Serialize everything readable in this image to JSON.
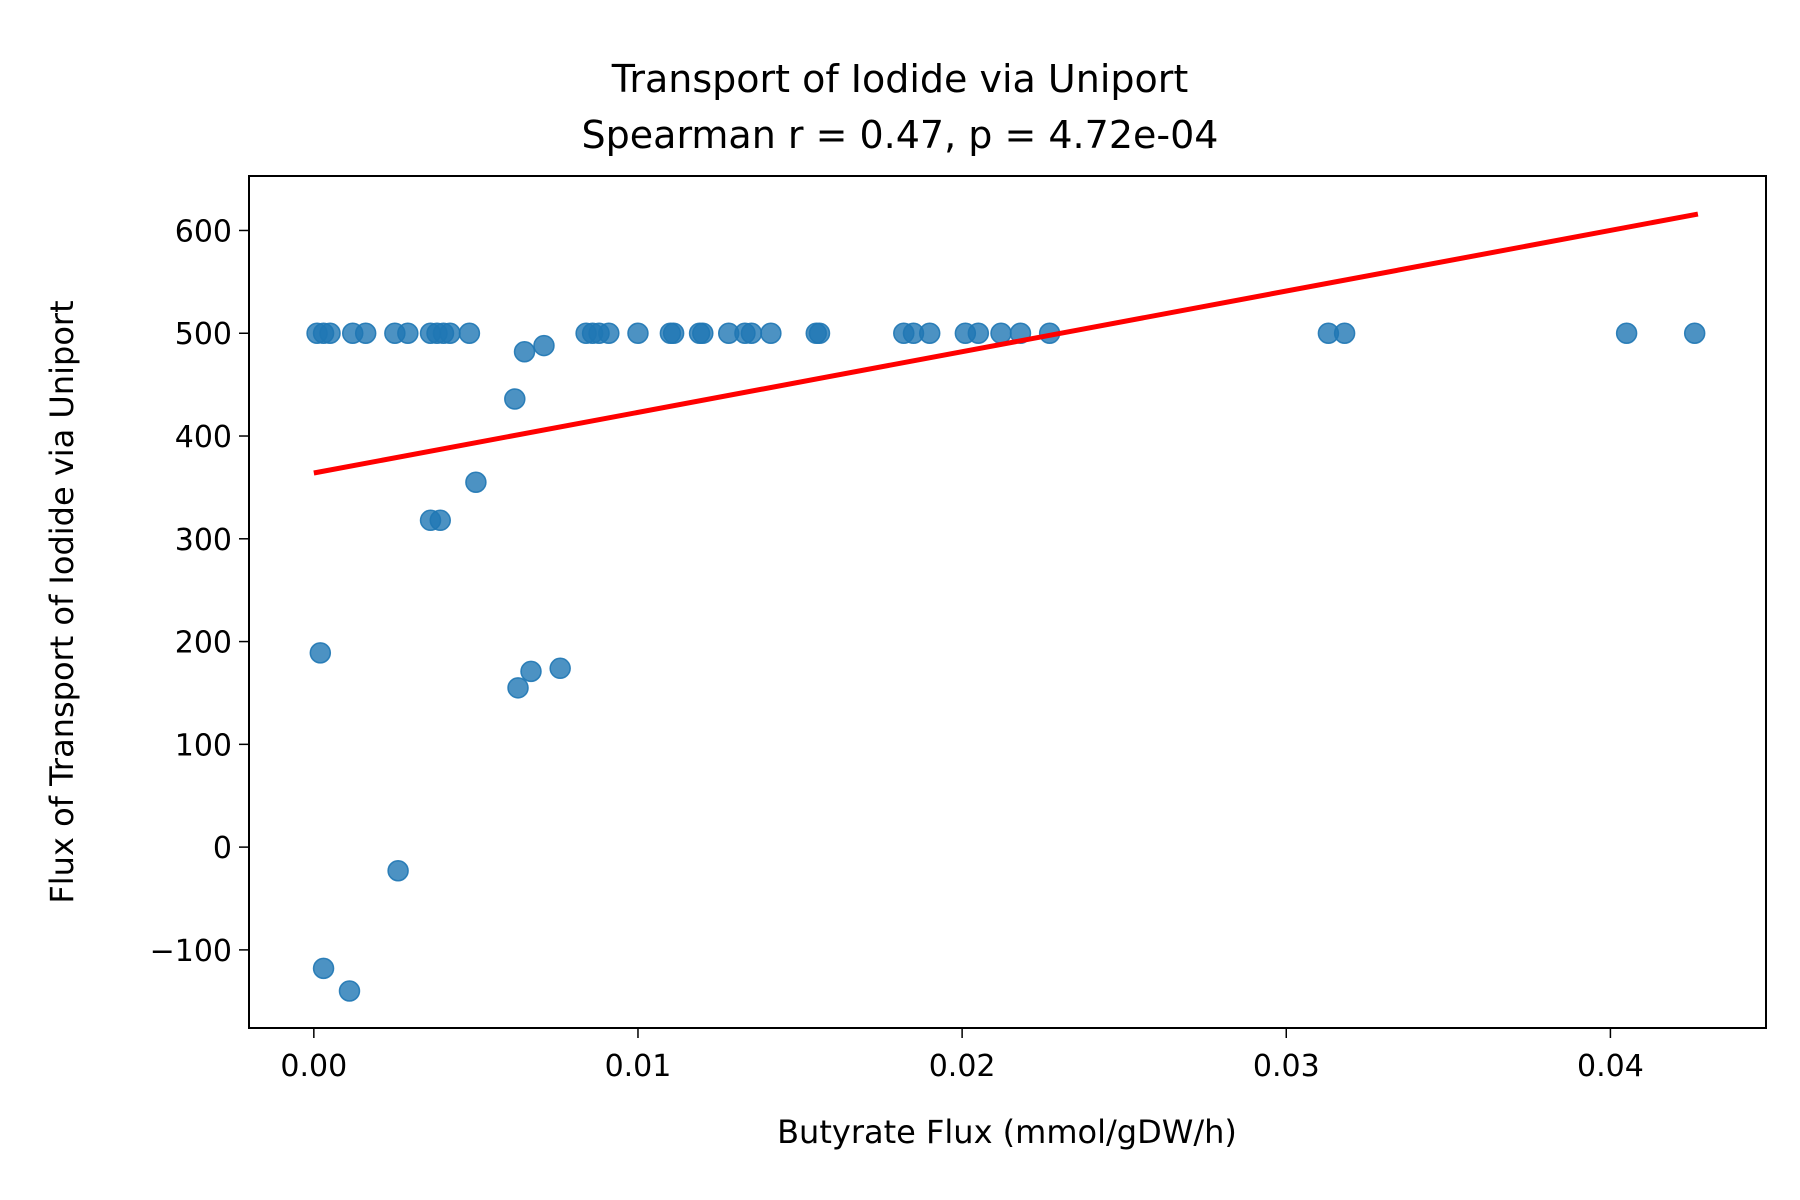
{
  "chart_data": {
    "type": "scatter",
    "title": "Transport of Iodide via Uniport",
    "subtitle": "Spearman r = 0.47, p = 4.72e-04",
    "xlabel": "Butyrate Flux (mmol/gDW/h)",
    "ylabel": "Flux of Transport of Iodide via Uniport",
    "xlim": [
      -0.002,
      0.0448
    ],
    "ylim": [
      -176,
      653
    ],
    "xticks": [
      0.0,
      0.01,
      0.02,
      0.03,
      0.04
    ],
    "xtick_labels": [
      "0.00",
      "0.01",
      "0.02",
      "0.03",
      "0.04"
    ],
    "yticks": [
      -100,
      0,
      100,
      200,
      300,
      400,
      500,
      600
    ],
    "ytick_labels": [
      "−100",
      "0",
      "100",
      "200",
      "300",
      "400",
      "500",
      "600"
    ],
    "grid": false,
    "point_color": "#1f77b4",
    "fit_color": "#ff0000",
    "points": [
      {
        "x": 0.0001,
        "y": 500
      },
      {
        "x": 0.0003,
        "y": 500
      },
      {
        "x": 0.0005,
        "y": 500
      },
      {
        "x": 0.0012,
        "y": 500
      },
      {
        "x": 0.0016,
        "y": 500
      },
      {
        "x": 0.0025,
        "y": 500
      },
      {
        "x": 0.0029,
        "y": 500
      },
      {
        "x": 0.0036,
        "y": 500
      },
      {
        "x": 0.0038,
        "y": 500
      },
      {
        "x": 0.004,
        "y": 500
      },
      {
        "x": 0.0042,
        "y": 500
      },
      {
        "x": 0.0048,
        "y": 500
      },
      {
        "x": 0.0084,
        "y": 500
      },
      {
        "x": 0.0086,
        "y": 500
      },
      {
        "x": 0.0088,
        "y": 500
      },
      {
        "x": 0.0091,
        "y": 500
      },
      {
        "x": 0.01,
        "y": 500
      },
      {
        "x": 0.011,
        "y": 500
      },
      {
        "x": 0.0111,
        "y": 500
      },
      {
        "x": 0.0119,
        "y": 500
      },
      {
        "x": 0.012,
        "y": 500
      },
      {
        "x": 0.0128,
        "y": 500
      },
      {
        "x": 0.0133,
        "y": 500
      },
      {
        "x": 0.0135,
        "y": 500
      },
      {
        "x": 0.0141,
        "y": 500
      },
      {
        "x": 0.0155,
        "y": 500
      },
      {
        "x": 0.0156,
        "y": 500
      },
      {
        "x": 0.0182,
        "y": 500
      },
      {
        "x": 0.0185,
        "y": 500
      },
      {
        "x": 0.019,
        "y": 500
      },
      {
        "x": 0.0201,
        "y": 500
      },
      {
        "x": 0.0205,
        "y": 500
      },
      {
        "x": 0.0212,
        "y": 500
      },
      {
        "x": 0.0218,
        "y": 500
      },
      {
        "x": 0.0227,
        "y": 500
      },
      {
        "x": 0.0313,
        "y": 500
      },
      {
        "x": 0.0318,
        "y": 500
      },
      {
        "x": 0.0405,
        "y": 500
      },
      {
        "x": 0.0426,
        "y": 500
      },
      {
        "x": 0.0071,
        "y": 488
      },
      {
        "x": 0.0065,
        "y": 482
      },
      {
        "x": 0.0062,
        "y": 436
      },
      {
        "x": 0.005,
        "y": 355
      },
      {
        "x": 0.0036,
        "y": 318
      },
      {
        "x": 0.0039,
        "y": 318
      },
      {
        "x": 0.0002,
        "y": 189
      },
      {
        "x": 0.0076,
        "y": 174
      },
      {
        "x": 0.0067,
        "y": 171
      },
      {
        "x": 0.0063,
        "y": 155
      },
      {
        "x": 0.0026,
        "y": -23
      },
      {
        "x": 0.0003,
        "y": -118
      },
      {
        "x": 0.0011,
        "y": -140
      }
    ],
    "fit_line": {
      "x": [
        0.0,
        0.0427
      ],
      "y": [
        364,
        616
      ]
    }
  }
}
